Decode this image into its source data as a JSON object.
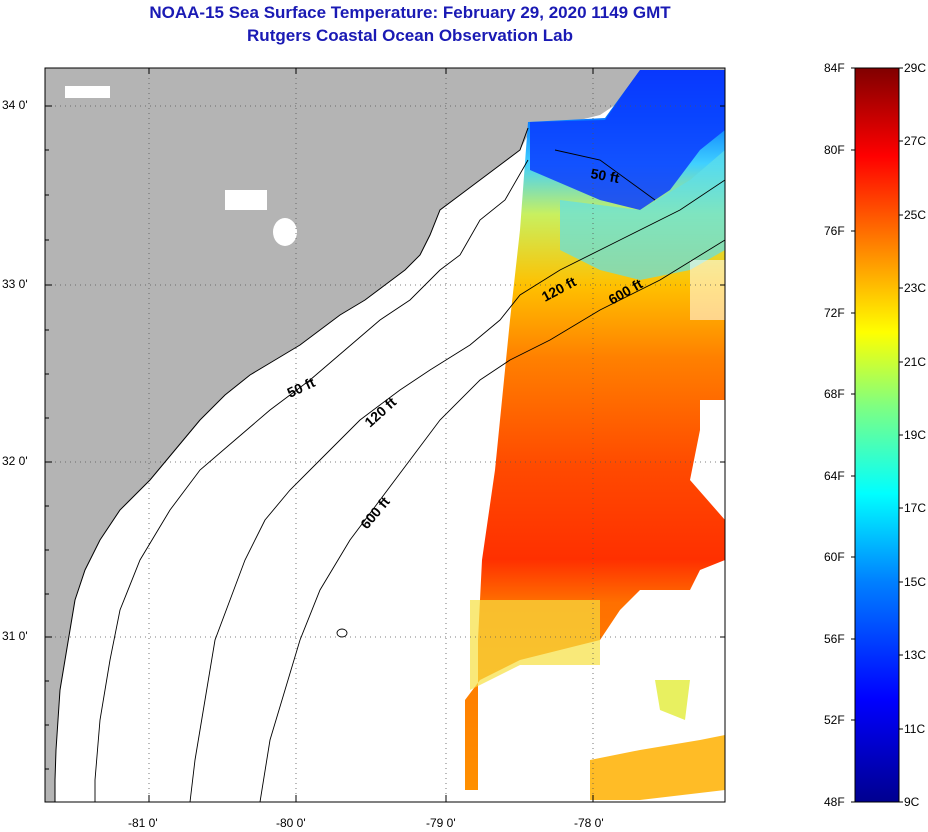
{
  "title": "NOAA-15 Sea Surface Temperature:  February 29, 2020 1149 GMT",
  "subtitle": "Rutgers Coastal Ocean Observation Lab",
  "lat_ticks": [
    "34 0'",
    "33 0'",
    "32 0'",
    "31 0'"
  ],
  "lon_ticks": [
    "-81 0'",
    "-80 0'",
    "-79 0'",
    "-78 0'"
  ],
  "contours": {
    "label_50": "50 ft",
    "label_120": "120 ft",
    "label_600": "600 ft"
  },
  "colorbar": {
    "fahrenheit": [
      "84F",
      "80F",
      "76F",
      "72F",
      "68F",
      "64F",
      "60F",
      "56F",
      "52F",
      "48F"
    ],
    "celsius": [
      "29C",
      "27C",
      "25C",
      "23C",
      "21C",
      "19C",
      "17C",
      "15C",
      "13C",
      "11C",
      "9C"
    ],
    "colors": [
      "#00008f",
      "#0000ff",
      "#0080ff",
      "#00ffff",
      "#80ff80",
      "#ffff00",
      "#ff8000",
      "#ff0000",
      "#800000"
    ]
  },
  "colors": {
    "land": "#b4b4b4",
    "ocean": "#ffffff",
    "title": "#1a1ab4"
  }
}
